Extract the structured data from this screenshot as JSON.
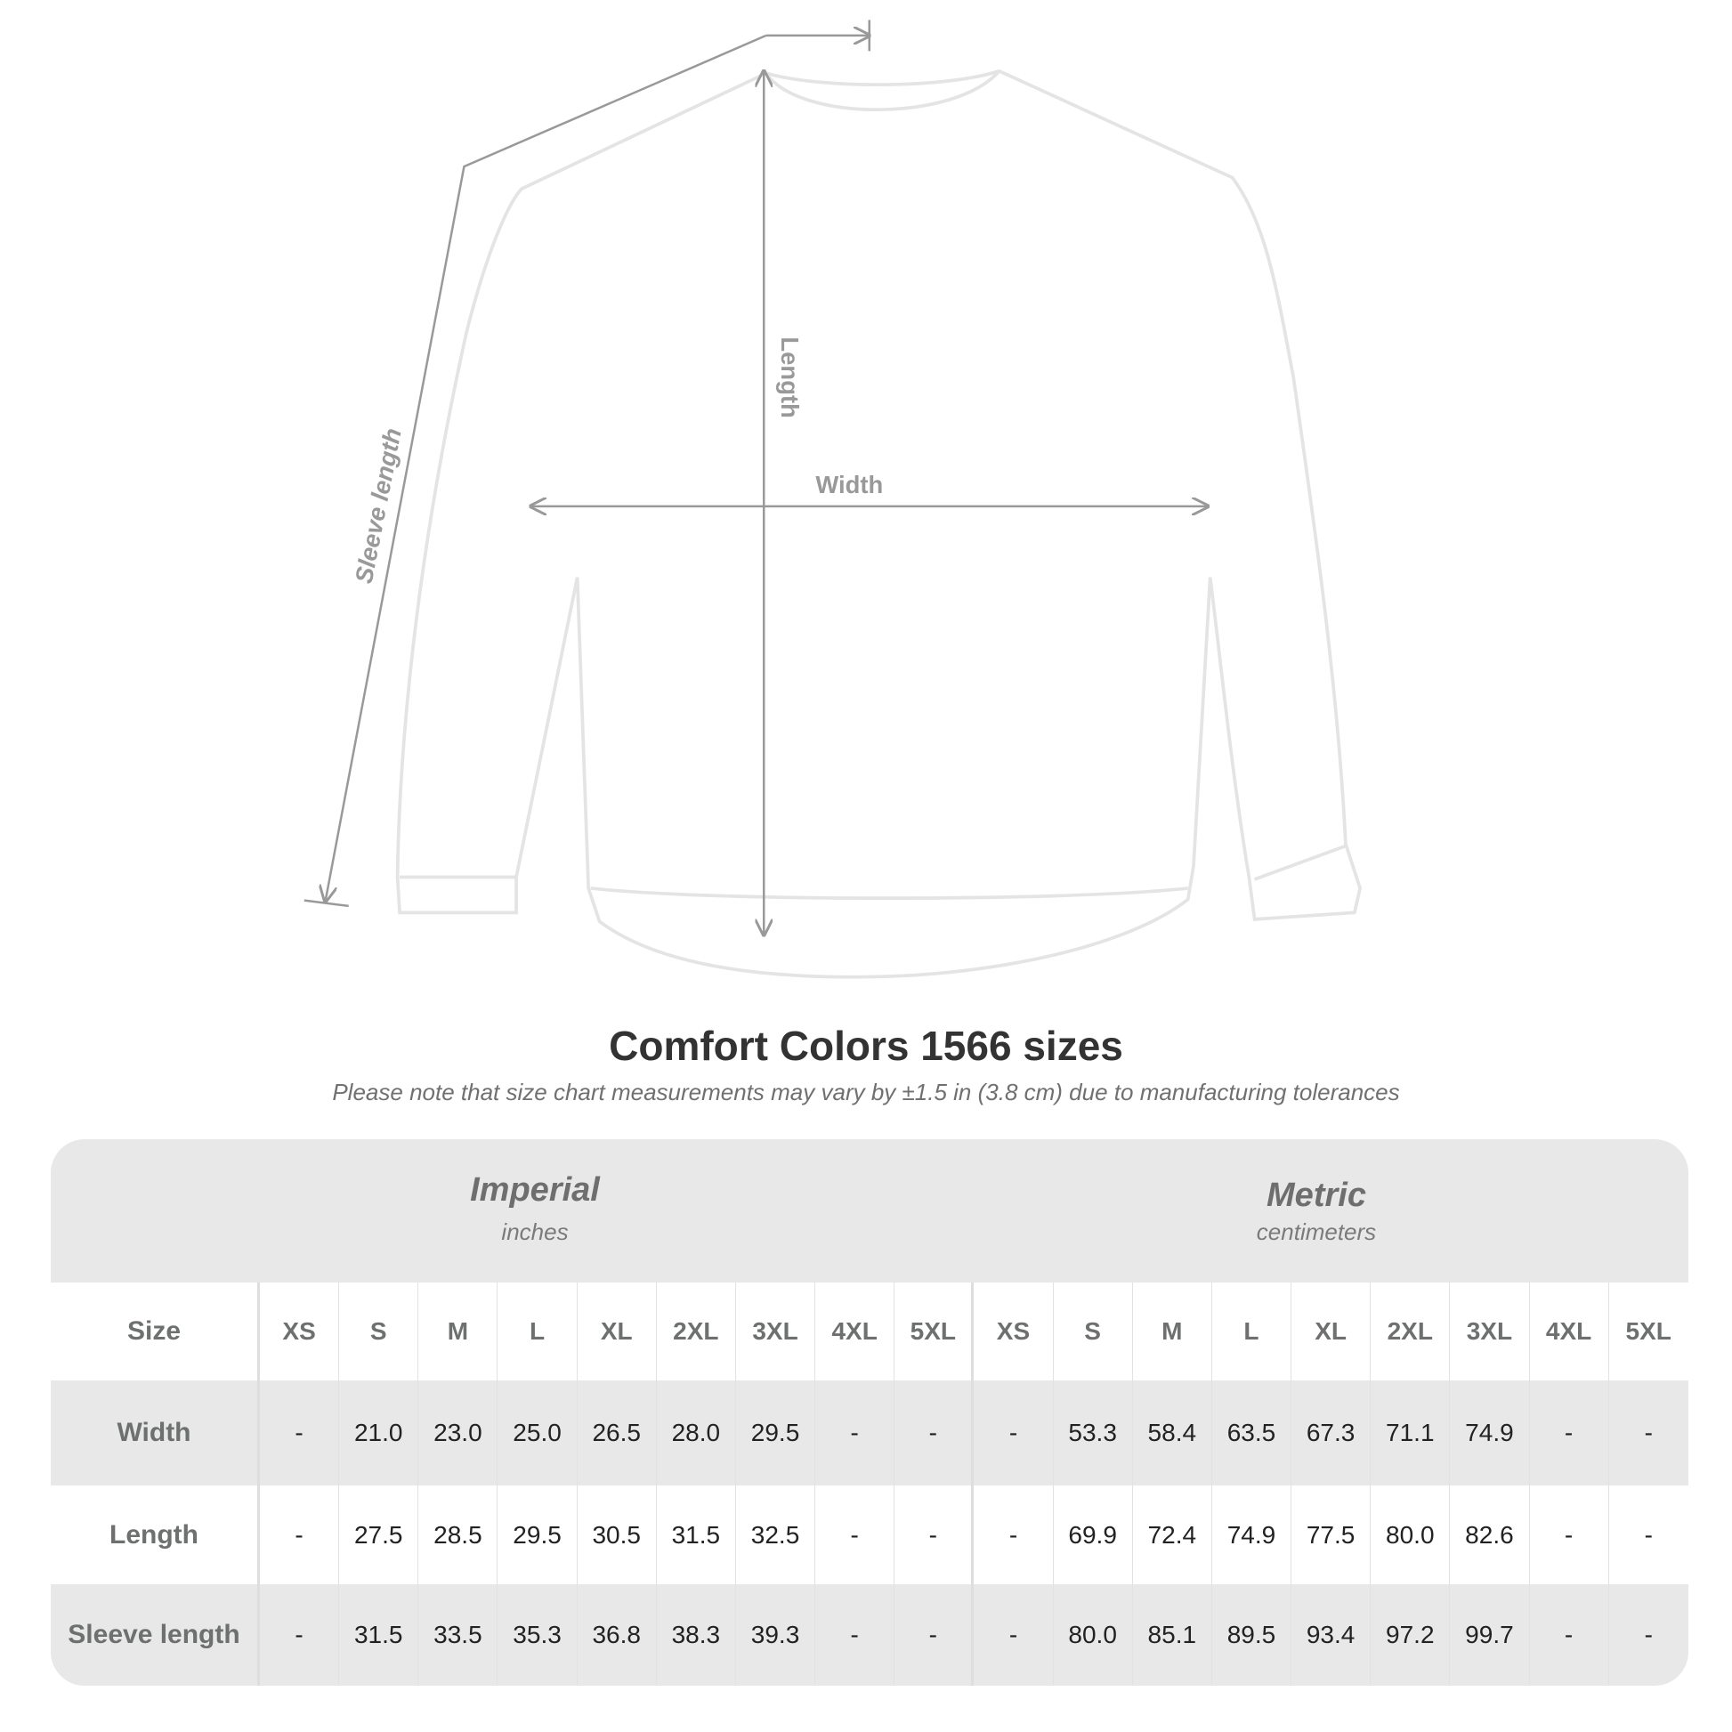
{
  "diagram": {
    "length_label": "Length",
    "width_label": "Width",
    "sleeve_label": "Sleeve length"
  },
  "title": "Comfort Colors 1566 sizes",
  "subtitle": "Please note that size chart measurements may vary by ±1.5 in (3.8 cm) due to manufacturing tolerances",
  "imperial": {
    "name": "Imperial",
    "unit": "inches"
  },
  "metric": {
    "name": "Metric",
    "unit": "centimeters"
  },
  "header": {
    "label": "Size",
    "sizes": [
      "XS",
      "S",
      "M",
      "L",
      "XL",
      "2XL",
      "3XL",
      "4XL",
      "5XL",
      "XS",
      "S",
      "M",
      "L",
      "XL",
      "2XL",
      "3XL",
      "4XL",
      "5XL"
    ]
  },
  "rows": [
    {
      "label": "Width",
      "values": [
        "-",
        "21.0",
        "23.0",
        "25.0",
        "26.5",
        "28.0",
        "29.5",
        "-",
        "-",
        "-",
        "53.3",
        "58.4",
        "63.5",
        "67.3",
        "71.1",
        "74.9",
        "-",
        "-"
      ]
    },
    {
      "label": "Length",
      "values": [
        "-",
        "27.5",
        "28.5",
        "29.5",
        "30.5",
        "31.5",
        "32.5",
        "-",
        "-",
        "-",
        "69.9",
        "72.4",
        "74.9",
        "77.5",
        "80.0",
        "82.6",
        "-",
        "-"
      ]
    },
    {
      "label": "Sleeve length",
      "values": [
        "-",
        "31.5",
        "33.5",
        "35.3",
        "36.8",
        "38.3",
        "39.3",
        "-",
        "-",
        "-",
        "80.0",
        "85.1",
        "89.5",
        "93.4",
        "97.2",
        "99.7",
        "-",
        "-"
      ]
    }
  ],
  "colors": {
    "band": "#e8e8e8",
    "line": "#999999",
    "title": "#333333"
  }
}
